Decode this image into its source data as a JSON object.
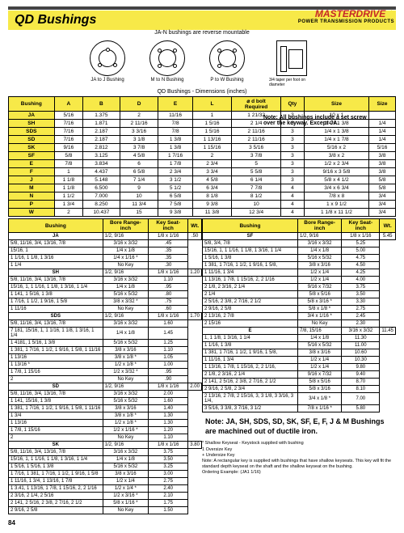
{
  "header": {
    "title": "QD Bushings",
    "brand": "MASTERDRIVE",
    "brand_sub": "POWER TRANSMISSION PRODUCTS",
    "mount_note": "JA-N bushings are reverse mountable",
    "dim_title": "QD Bushings - Dimensions (inches)",
    "side_note1": "Note: All bushings include a set screw",
    "side_note2": "over the keyway.  Except JA.",
    "d1": "JA to J\nBushing",
    "d2": "M to N\nBushing",
    "d3": "P to W\nBushing",
    "taper_note": "3/4 taper per foot\non diameter"
  },
  "main": {
    "headers": [
      "Bushing",
      "A",
      "B",
      "D",
      "E",
      "L",
      "⌀ d bolt\nRequired",
      "Qty",
      "Size",
      "Size"
    ],
    "group_headers": [
      "",
      "",
      "",
      "",
      "",
      "",
      "",
      "Cap Screws Grade 5",
      "",
      "Set Screw"
    ],
    "rows": [
      [
        "JA",
        "5/16",
        "1.375",
        "2",
        "11/16",
        "1",
        "1 21/32",
        "3",
        "10 x 1",
        ""
      ],
      [
        "SH",
        "7/16",
        "1.871",
        "2 11/16",
        "7/8",
        "1 5/16",
        "2 1/4",
        "3",
        "1/4 x 1 3/8",
        "1/4"
      ],
      [
        "SDS",
        "7/16",
        "2.187",
        "3 3/16",
        "7/8",
        "1 5/16",
        "2 11/16",
        "3",
        "1/4 x 1 3/8",
        "1/4"
      ],
      [
        "SD",
        "7/16",
        "2.187",
        "3 1/8",
        "1 3/8",
        "1 13/16",
        "2 11/16",
        "3",
        "1/4 x 1 7/8",
        "1/4"
      ],
      [
        "SK",
        "9/16",
        "2.812",
        "3 7/8",
        "1 3/8",
        "1 15/16",
        "3 5/16",
        "3",
        "5/16 x 2",
        "5/16"
      ],
      [
        "SF",
        "5/8",
        "3.125",
        "4 5/8",
        "1 7/16",
        "2",
        "3 7/8",
        "3",
        "3/8 x 2",
        "3/8"
      ],
      [
        "E",
        "7/8",
        "3.834",
        "6",
        "1 7/8",
        "2 3/4",
        "5",
        "3",
        "1/2 x 2 3/4",
        "3/8"
      ],
      [
        "F",
        "1",
        "4.437",
        "6 5/8",
        "2 3/4",
        "3 3/4",
        "5 5/8",
        "3",
        "9/16 x 3 5/8",
        "3/8"
      ],
      [
        "J",
        "1 1/8",
        "5.148",
        "7 1/4",
        "3 1/2",
        "4 5/8",
        "6 1/4",
        "3",
        "5/8 x 4 1/2",
        "5/8"
      ],
      [
        "M",
        "1 1/8",
        "6.500",
        "9",
        "5 1/2",
        "6 3/4",
        "7 7/8",
        "4",
        "3/4 x 6 3/4",
        "5/8"
      ],
      [
        "N",
        "1 1/2",
        "7.000",
        "10",
        "6 5/8",
        "8 1/8",
        "8 1/2",
        "4",
        "7/8 x 8",
        "3/4"
      ],
      [
        "P",
        "1 3/4",
        "8.250",
        "11 3/4",
        "7 5/8",
        "9 3/8",
        "10",
        "4",
        "1 x 9 1/2",
        "3/4"
      ],
      [
        "W",
        "2",
        "10.437",
        "15",
        "9 3/8",
        "11 3/8",
        "12 3/4",
        "4",
        "1 1/8 x 11 1/2",
        "3/4"
      ]
    ]
  },
  "rangeL": {
    "headers": [
      "Bushing",
      "Bore Range-inch",
      "Key Seat- inch",
      "Wt."
    ],
    "groups": [
      {
        "code": "JA",
        "rows": [
          [
            "1/2, 9/16",
            "1/8 x 1/16",
            ".50"
          ],
          [
            "5/8, 11/16, 3/4, 13/16, 7/8",
            "3/16 x 3/32",
            ".45"
          ],
          [
            "15/16, 1",
            "1/4 x 1/8",
            ".35"
          ],
          [
            "1 1/16, 1 1/8, 1 3/16",
            "1/4 x 1/16 *",
            ".35"
          ],
          [
            "1 1/4",
            "No Key",
            ".30"
          ]
        ]
      },
      {
        "code": "SH",
        "rows": [
          [
            "1/2, 9/16",
            "1/8 x 1/16",
            "1.20"
          ],
          [
            "5/8, 11/16, 3/4, 13/16, 7/8",
            "3/16 x 3/32",
            "1.10"
          ],
          [
            "15/16, 1, 1 1/16, 1 1/8, 1 3/16, 1 1/4",
            "1/4 x 1/8",
            ".95"
          ],
          [
            "1 141, 1 5/16, 1 3/8",
            "5/16 x 5/32",
            ".80"
          ],
          [
            "1 7/16, 1 1/2, 1 9/16, 1 5/8",
            "3/8 x 3/32 *",
            ".75"
          ],
          [
            "1 11/16",
            "No Key",
            ".60"
          ]
        ]
      },
      {
        "code": "SDS",
        "rows": [
          [
            "1/2, 9/16",
            "1/8 x 1/16",
            "1.70"
          ],
          [
            "5/8, 11/16, 3/4, 13/16, 7/8",
            "3/16 x 3/32",
            "1.60"
          ],
          [
            "7 181, 15/16, 1, 1 1/16, 1 1/8, 1 3/16, 1 1/4",
            "1/4 x 1/8",
            "1.45"
          ],
          [
            "1 4181, 1 5/16, 1 3/8",
            "5/16 x 5/32",
            "1.25"
          ],
          [
            "1 381, 1 7/16, 1 1/2, 1 9/16, 1 5/8, 1 11/16",
            "3/8 x 3/16",
            "1.10"
          ],
          [
            "1 13/16",
            "3/8 x 1/8 *",
            "1.05"
          ],
          [
            "1 13/16 *",
            "1/2 x 1/8 *",
            "1.00"
          ],
          [
            "1 7/8, 1 15/16",
            "1/2 x 3/32 *",
            ".95"
          ],
          [
            "2",
            "No Key",
            ".90"
          ]
        ]
      },
      {
        "code": "SD",
        "rows": [
          [
            "1/2, 9/16",
            "1/8 x 1/16",
            "2.00"
          ],
          [
            "5/8, 11/16, 3/4, 13/16, 7/8",
            "3/16 x 3/32",
            "2.00"
          ],
          [
            "1 141, 15/16, 1 3/8",
            "5/16 x 5/32",
            "1.60"
          ],
          [
            "1 381, 1 7/16, 1 1/2, 1 9/16, 1 5/8, 1 11/16",
            "3/8 x 3/16",
            "1.40"
          ],
          [
            "1 3/4",
            "3/8 x 1/8 *",
            "1.30"
          ],
          [
            "1 13/16",
            "1/2 x 1/8 *",
            "1.30"
          ],
          [
            "1 7/8, 1 15/16",
            "1/2 x 1/16 *",
            "1.20"
          ],
          [
            "2",
            "No Key",
            "1.10"
          ]
        ]
      },
      {
        "code": "SK",
        "rows": [
          [
            "1/2, 9/16",
            "1/8 x 1/16",
            "3.80"
          ],
          [
            "5/8, 11/16, 3/4, 13/16, 7/8",
            "3/16 x 3/32",
            "3.75"
          ],
          [
            "15/16, 1, 1 1/16, 1 1/8, 1 3/16, 1 1/4",
            "1/4 x 1/8",
            "3.50"
          ],
          [
            "1 5/16, 1 5/16, 1 3/8",
            "5/16 x 5/32",
            "3.25"
          ],
          [
            "1 7/16, 1 381, 1 7/16, 1 1/2, 1 9/16, 1 5/8",
            "3/8 x 3/16",
            "3.00"
          ],
          [
            "1 11/16, 1 3/4, 1 13/16, 1 7/8",
            "1/2 x 1/4",
            "2.75"
          ],
          [
            "1 3.41, 1 13/16, 1 7/8, 1 15/16, 2, 2 1/16",
            "1/2 x 1/4 *",
            "2.40"
          ],
          [
            "2 3/16, 2 1/4, 2 5/16",
            "1/2 x 3/16 *",
            "2.10"
          ],
          [
            "2 141, 2 5/16, 2 3/8, 2 7/16, 2 1/2",
            "5/8 x 1/16 *",
            "1.75"
          ],
          [
            "2 9/16, 2 5/8",
            "No Key",
            "1.50"
          ]
        ]
      }
    ]
  },
  "rangeR": {
    "headers": [
      "Bushing",
      "Bore Range-inch",
      "Key Seat- inch",
      "Wt."
    ],
    "groups": [
      {
        "code": "SF",
        "rows": [
          [
            "1/2, 9/16",
            "1/8 x 1/16",
            "5.45"
          ],
          [
            "5/8, 3/4, 7/8",
            "3/16 x 3/32",
            "5.25"
          ],
          [
            "15/16, 1, 1 1/16, 1 1/8, 1 3/16, 1 1/4",
            "1/4 x 1/8",
            "5.00"
          ],
          [
            "1 5/16, 1 3/8",
            "5/16 x 5/32",
            "4.75"
          ],
          [
            "1 381, 1 7/16, 1 1/2, 1 9/16, 1 5/8,",
            "3/8 x 3/16",
            "4.50"
          ],
          [
            "1 11/16, 1 3/4",
            "1/2 x 1/4",
            "4.25"
          ],
          [
            "1 13/16, 1 7/8, 1 15/16, 2, 2 1/16",
            "1/2 x 1/4",
            "4.00"
          ],
          [
            "2 1/8, 2 3/16, 2 1/4",
            "9/16 x 7/32",
            "3.75"
          ],
          [
            "2 1/4",
            "5/8 x 5/16",
            "3.50"
          ],
          [
            "2 5/16, 2 3/8, 2 7/16, 2 1/2",
            "5/8 x 3/16 *",
            "3.30"
          ],
          [
            "2 9/16, 2 5/8",
            "5/8 x 1/8 *",
            "2.75"
          ],
          [
            "2 13/16, 2 7/8",
            "3/4 x 1/16 *",
            "2.45"
          ],
          [
            "2 15/16",
            "No Key",
            "2.30"
          ]
        ]
      },
      {
        "code": "E",
        "rows": [
          [
            "7/8, 15/16",
            "3/16 x 3/32",
            "11.45"
          ],
          [
            "1, 1 1/8, 1 3/16, 1 1/4",
            "1/4 x 1/8",
            "11.30"
          ],
          [
            "1 1/16, 1 3/8",
            "5/16 x 5/32",
            "11.00"
          ],
          [
            "1 381, 1 7/16, 1 1/2, 1 9/16, 1 5/8,",
            "3/8 x 3/16",
            "10.60"
          ],
          [
            "1 11/16, 1 3/4",
            "1/2 x 1/4",
            "10.30"
          ],
          [
            "1 13/16, 1 7/8, 1 15/16, 2, 2 1/16,",
            "1/2 x 1/4",
            "9.80"
          ],
          [
            "2 1/8, 2 3/16, 2 1/4",
            "9/16 x 7/32",
            "9.40"
          ],
          [
            "2 141, 2 5/16, 2 3/8, 2 7/16, 2 1/2",
            "5/8 x 5/16",
            "8.70"
          ],
          [
            "2 9/16, 2 5/8, 2 3/4",
            "5/8 x 3/16",
            "8.10"
          ],
          [
            "2 13/16, 2 7/8, 2 15/16, 3, 3 1/8, 3 3/16, 3 1/4,",
            "3/4 x 1/8 *",
            "7.00"
          ],
          [
            "3 5/16, 3 3/8, 3 7/16, 3 1/2",
            "7/8 x 1/16 *",
            "5.80"
          ]
        ]
      }
    ]
  },
  "note": "Note: JA, SH, SDS, SD, SK, SF, E, F, J & M Bushings are machined out of ductile iron.",
  "footnotes": [
    "*  Shallow Keyseat - Keystock supplied with bushing",
    "1  Oversize Key",
    "+  Undersize Key",
    "Note:   A rectangular key is supplied with bushings that have shallow keyseats.  This key will fit the standard depth keyseat on the shaft and the shallow keyseat on the bushing.",
    "Ordering Example:   (JA1 1/16)"
  ],
  "page_num": "84"
}
